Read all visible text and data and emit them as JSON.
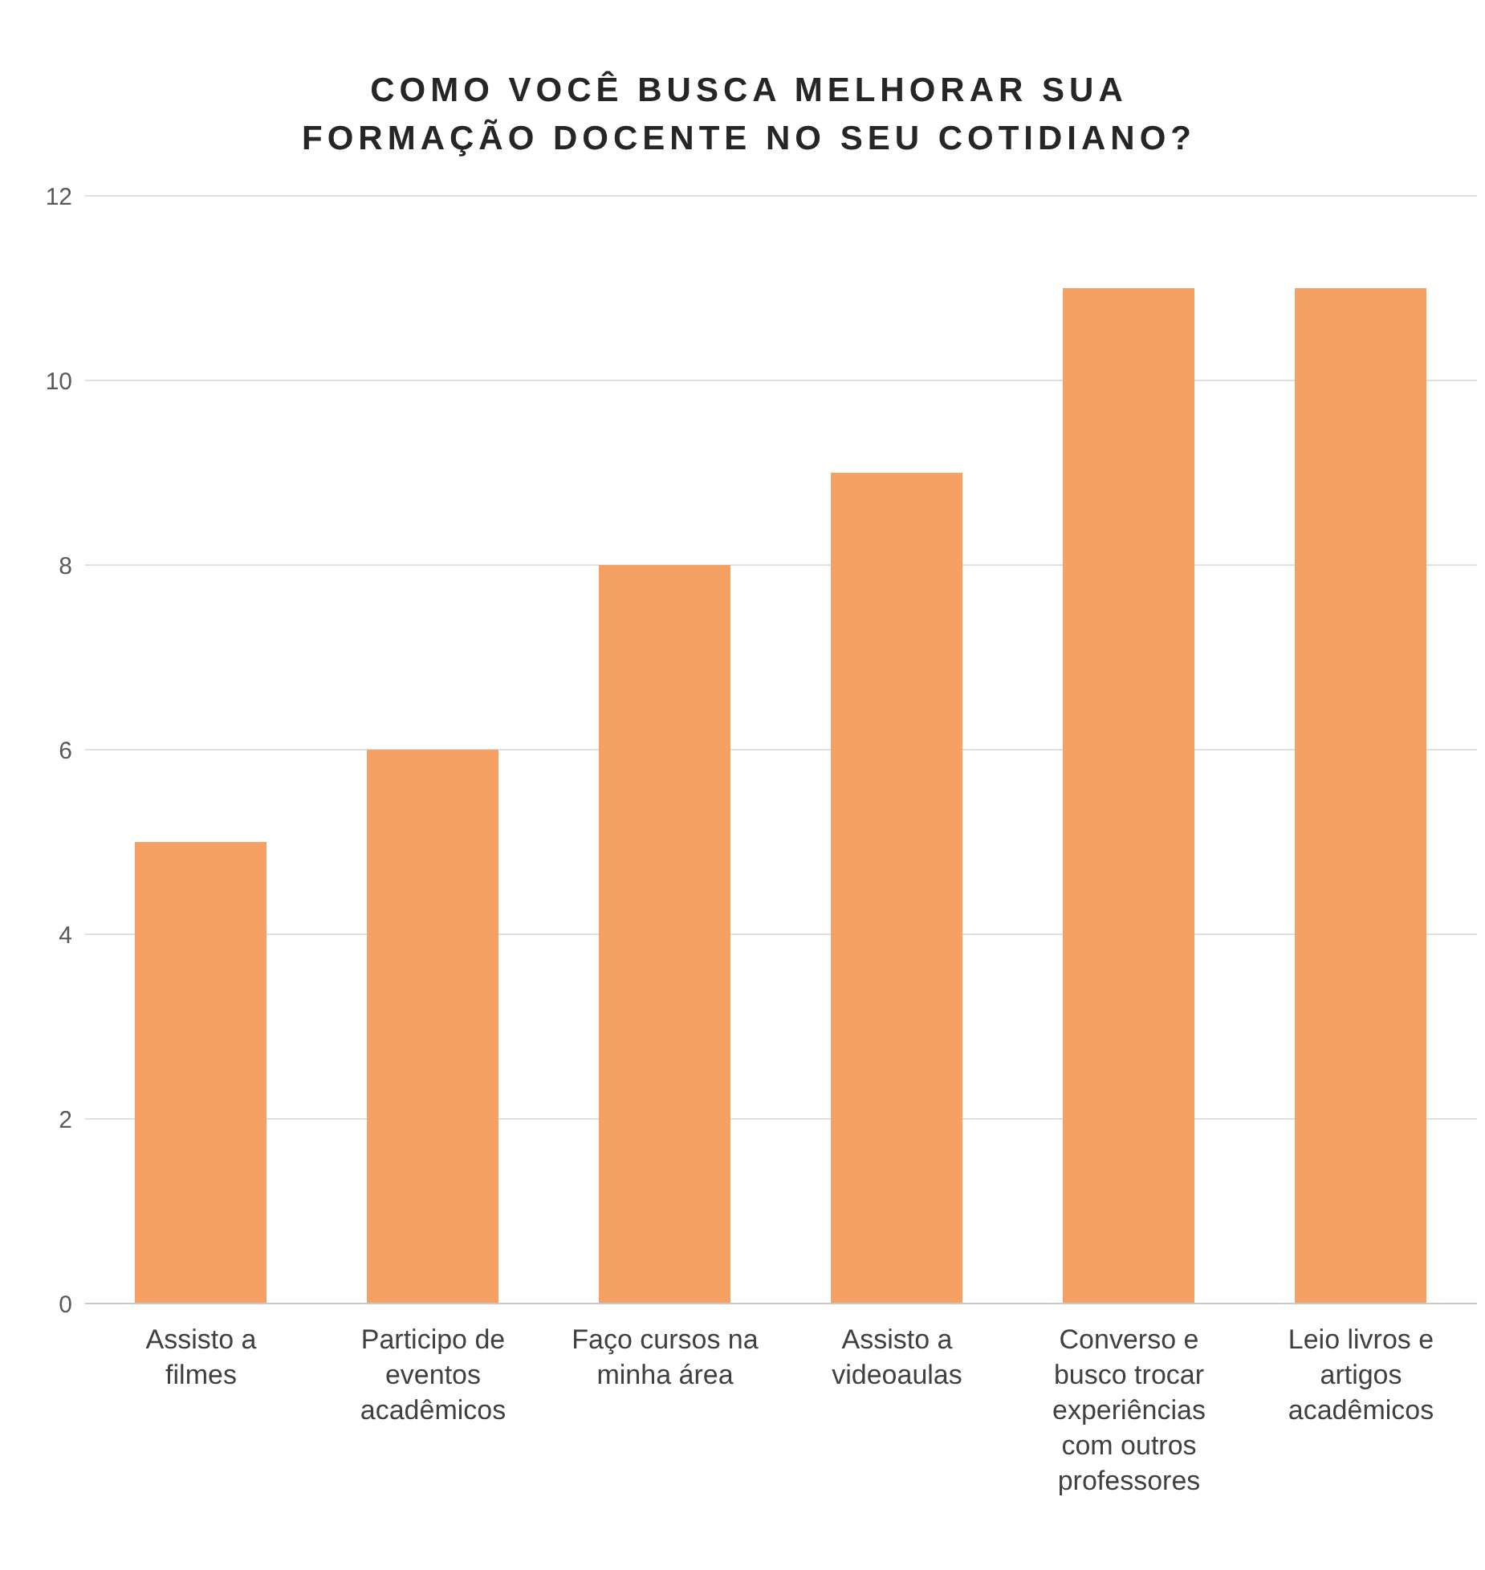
{
  "chart_data": {
    "type": "bar",
    "title": "COMO VOCÊ BUSCA MELHORAR SUA FORMAÇÃO DOCENTE NO SEU COTIDIANO?",
    "categories": [
      "Assisto a filmes",
      "Participo de eventos acadêmicos",
      "Faço cursos na minha área",
      "Assisto a videoaulas",
      "Converso e busco trocar experiências com outros professores",
      "Leio livros e artigos acadêmicos"
    ],
    "values": [
      5,
      6,
      8,
      9,
      11,
      11
    ],
    "color": "#f7a064",
    "ylim": [
      0,
      12
    ],
    "yticks": [
      0,
      2,
      4,
      6,
      8,
      10,
      12
    ],
    "grid": "y",
    "legend": false
  }
}
